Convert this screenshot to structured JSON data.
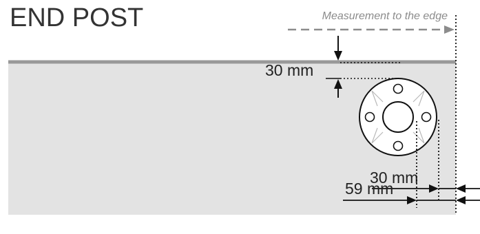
{
  "title": "END POST",
  "note": "Measurement to the edge",
  "dimensions": {
    "top_offset": "30 mm",
    "side_offset": "30 mm",
    "edge_offset": "59 mm"
  }
}
